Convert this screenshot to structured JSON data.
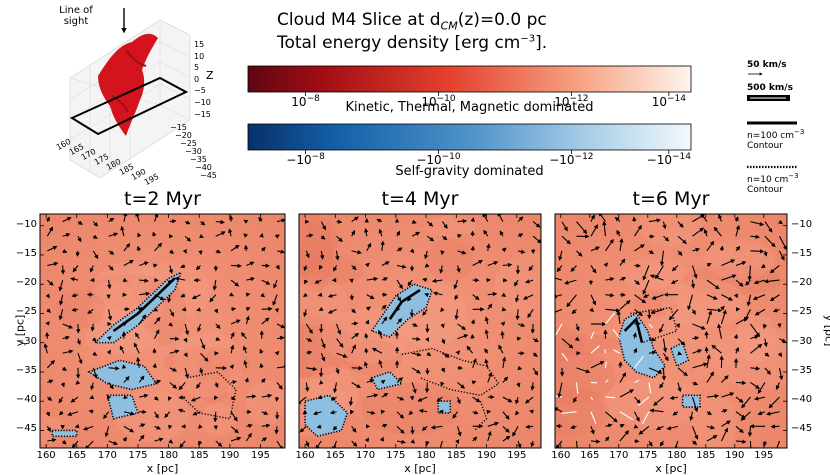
{
  "header": {
    "title_line1": "Cloud M4  Slice at d",
    "title_line1_sub": "CM",
    "title_line1_rest": "(z)=0.0 pc",
    "title_line2": "Total energy density [erg cm",
    "title_line2_sup": "−3",
    "title_line2_rest": "]."
  },
  "inset": {
    "line_of_sight": "Line of sight",
    "z_axis_label": "Z",
    "z_ticks": [
      "15",
      "10",
      "5",
      "0",
      "−5",
      "−10",
      "−15"
    ],
    "x_ticks": [
      "160",
      "165",
      "170",
      "175",
      "180",
      "185",
      "190",
      "195"
    ],
    "y_ticks": [
      "−15",
      "−20",
      "−25",
      "−30",
      "−35",
      "−40",
      "−45"
    ]
  },
  "colorbars": {
    "red": {
      "ticks": [
        "10−8",
        "10−10",
        "10−12",
        "10−14"
      ],
      "tick_base": [
        "10",
        "10",
        "10",
        "10"
      ],
      "tick_exp": [
        "−8",
        "−10",
        "−12",
        "−14"
      ],
      "caption": "Kinetic, Thermal, Magnetic dominated",
      "color_dark": "#6b0410",
      "color_mid": "#e8472f",
      "color_light": "#fdf0ea"
    },
    "blue": {
      "tick_base": [
        "−10",
        "−10",
        "−10",
        "−10"
      ],
      "tick_exp": [
        "−8",
        "−10",
        "−12",
        "−14"
      ],
      "caption": "Self-gravity dominated",
      "color_dark": "#08306b",
      "color_mid": "#4a8cc6",
      "color_light": "#eef5fb"
    }
  },
  "legend": {
    "arrow_small": "50 km/s",
    "arrow_large": "500 km/s",
    "solid_contour": "n=100 cm",
    "solid_contour_sup": "−3",
    "solid_contour_word": "Contour",
    "dotted_contour": "n=10  cm",
    "dotted_contour_sup": "−3",
    "dotted_contour_word": "Contour"
  },
  "chart_data": [
    {
      "type": "heatmap",
      "title": "t=2 Myr",
      "xlabel": "x [pc]",
      "ylabel": "y [pc]",
      "xlim": [
        159,
        199
      ],
      "ylim": [
        -48,
        -8
      ],
      "xticks": [
        160,
        165,
        170,
        175,
        180,
        185,
        190,
        195
      ],
      "yticks": [
        -10,
        -15,
        -20,
        -25,
        -30,
        -35,
        -40,
        -45
      ],
      "background_color": "#ef8c70"
    },
    {
      "type": "heatmap",
      "title": "t=4 Myr",
      "xlabel": "x [pc]",
      "ylabel": "",
      "xlim": [
        159,
        199
      ],
      "ylim": [
        -48,
        -8
      ],
      "xticks": [
        160,
        165,
        170,
        175,
        180,
        185,
        190,
        195
      ],
      "yticks": [],
      "background_color": "#ef8c70"
    },
    {
      "type": "heatmap",
      "title": "t=6 Myr",
      "xlabel": "x [pc]",
      "ylabel": "y [pc]",
      "xlim": [
        159,
        199
      ],
      "ylim": [
        -48,
        -8
      ],
      "xticks": [
        160,
        165,
        170,
        175,
        180,
        185,
        190,
        195
      ],
      "yticks": [
        -10,
        -15,
        -20,
        -25,
        -30,
        -35,
        -40,
        -45
      ],
      "background_color": "#ef8c70"
    }
  ]
}
